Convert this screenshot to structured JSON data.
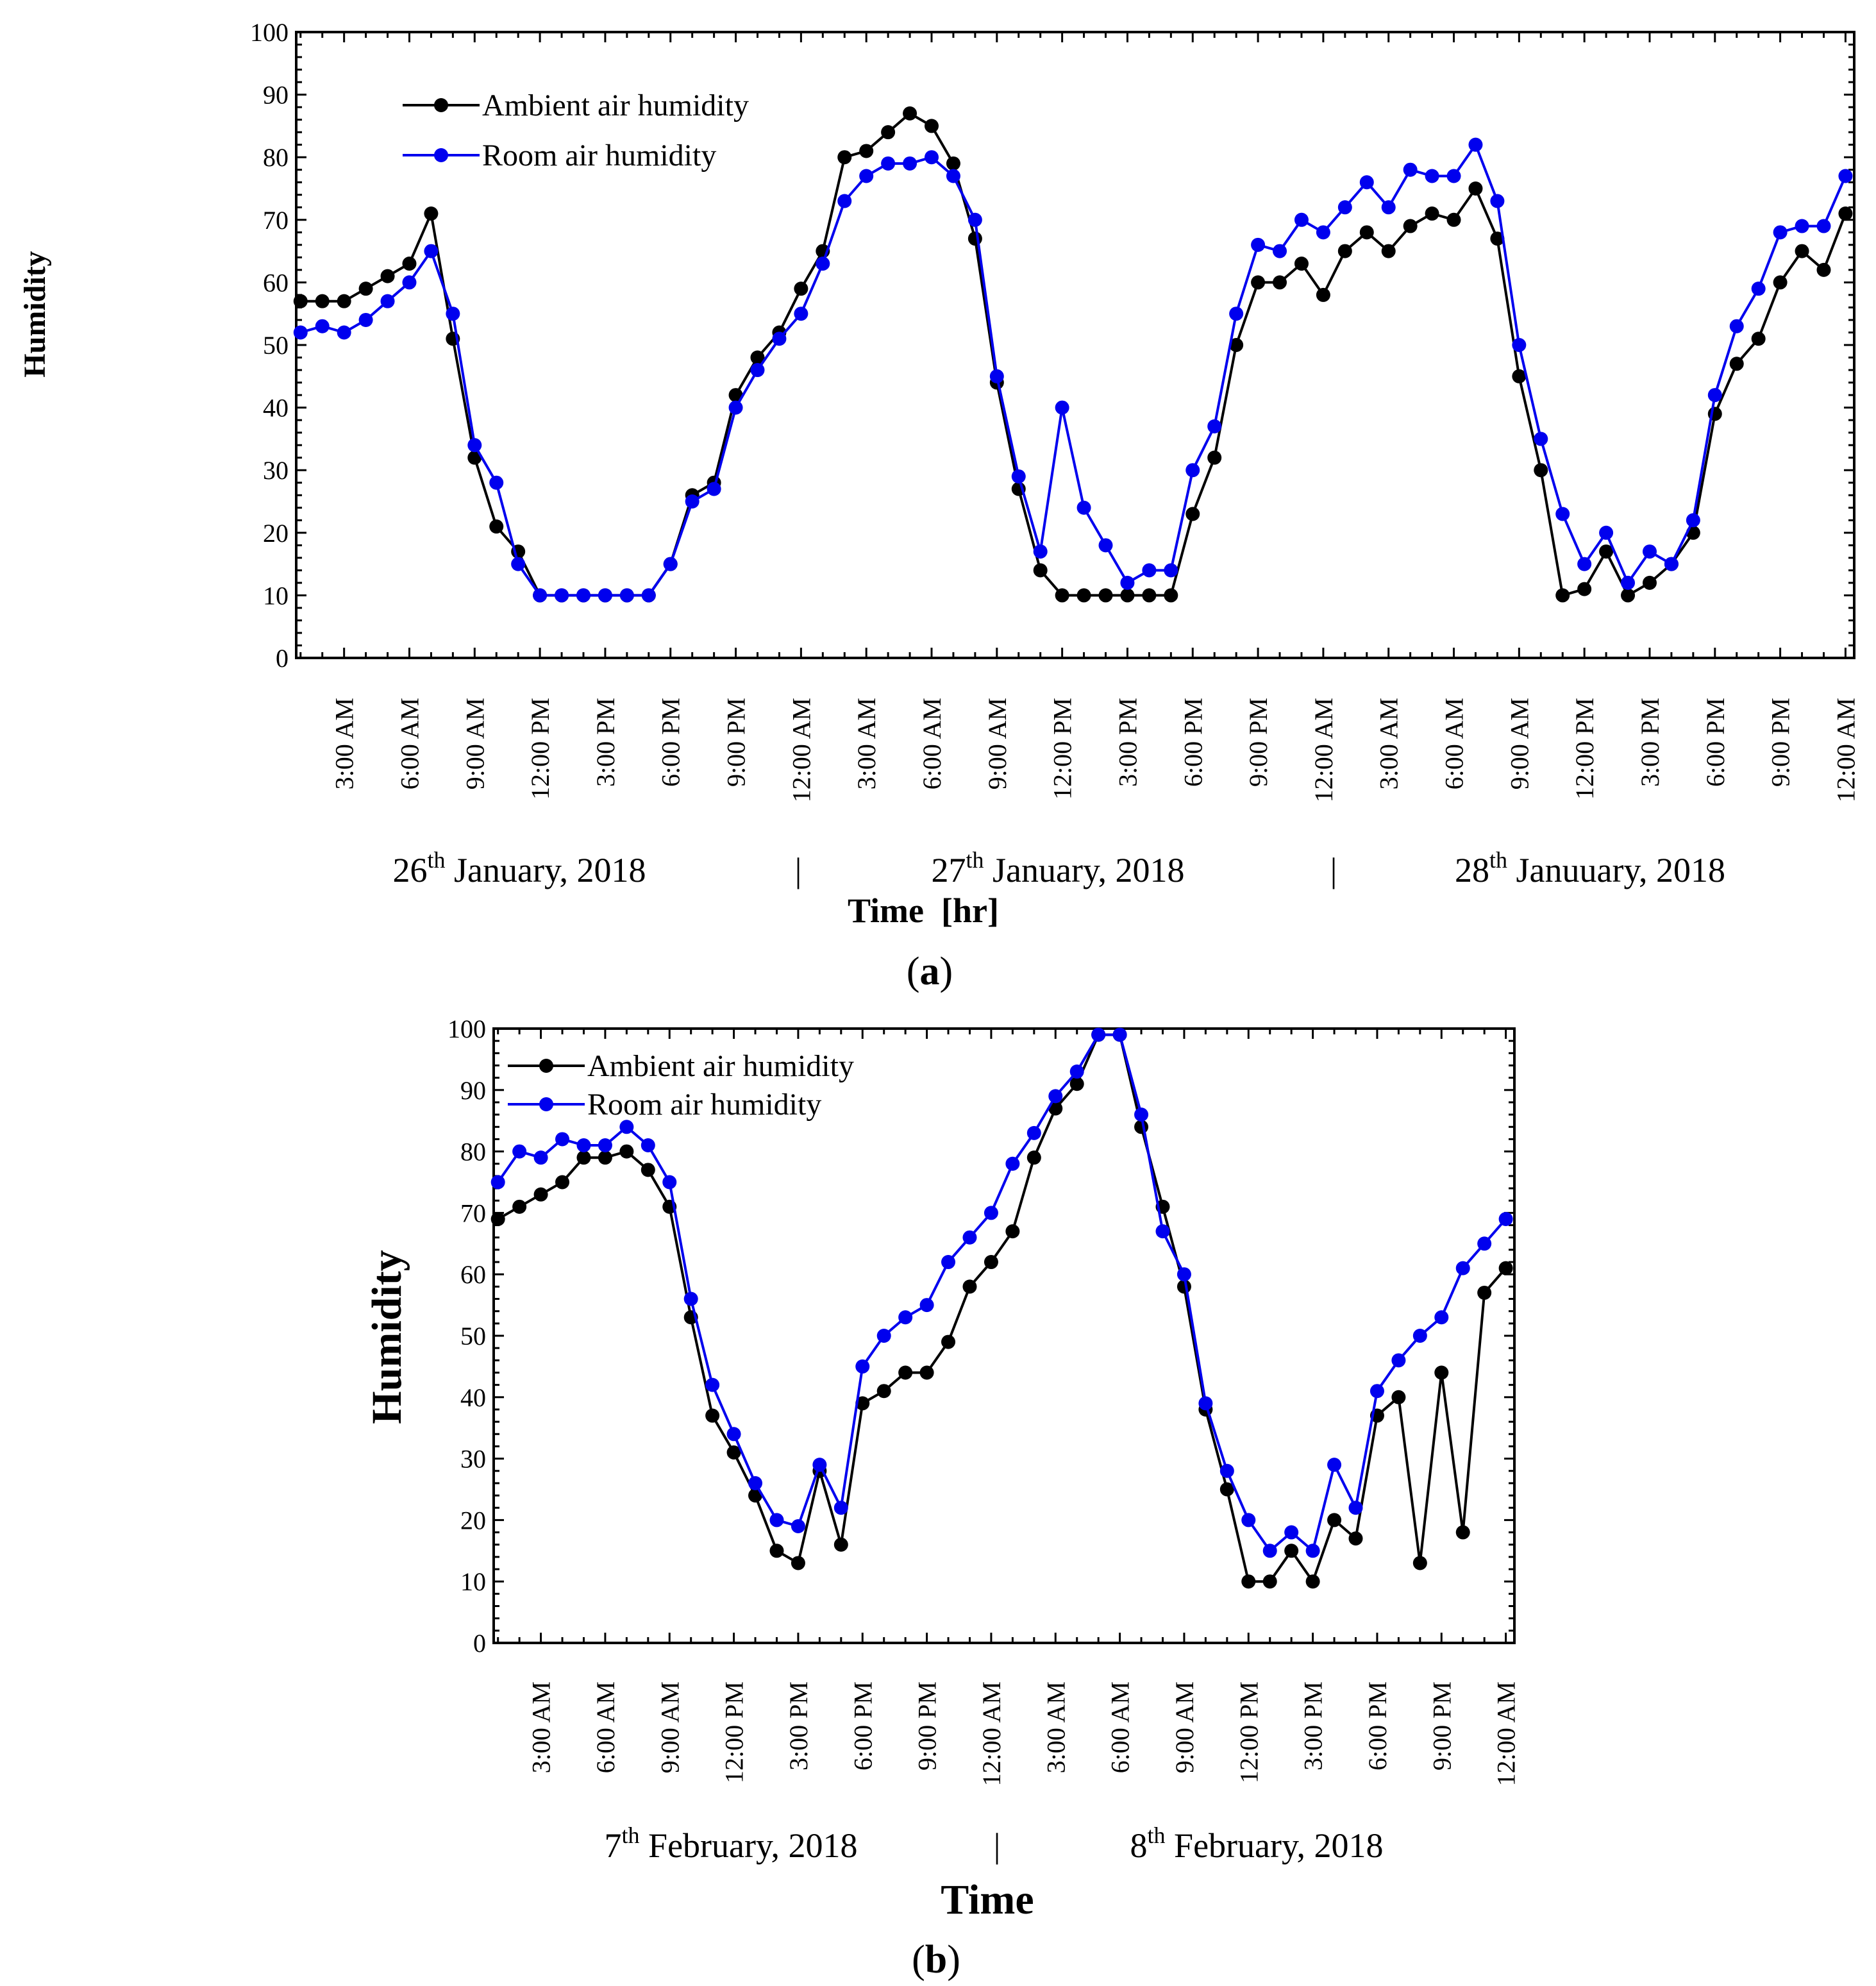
{
  "colors": {
    "ambient": "#000000",
    "room": "#0000ee"
  },
  "chart_data": [
    {
      "type": "line",
      "panel_label": "a",
      "title": "",
      "xlabel": "Time  [hr]",
      "ylabel": "Humidity",
      "ylim": [
        0,
        100
      ],
      "yticks": [
        "0",
        "10",
        "20",
        "30",
        "40",
        "50",
        "60",
        "70",
        "80",
        "90",
        "100"
      ],
      "x_tick_labels": [
        "3:00 AM",
        "6:00 AM",
        "9:00 AM",
        "12:00 PM",
        "3:00 PM",
        "6:00 PM",
        "9:00 PM",
        "12:00 AM",
        "3:00 AM",
        "6:00 AM",
        "9:00 AM",
        "12:00 PM",
        "3:00 PM",
        "6:00 PM",
        "9:00 PM",
        "12:00 AM",
        "3:00 AM",
        "6:00 AM",
        "9:00 AM",
        "12:00 PM",
        "3:00 PM",
        "6:00 PM",
        "9:00 PM",
        "12:00 AM"
      ],
      "date_labels": [
        {
          "day": "26",
          "sup": "th",
          "text": " January, 2018"
        },
        {
          "day": "27",
          "sup": "th",
          "text": " January, 2018"
        },
        {
          "day": "28",
          "sup": "th",
          "text": " Januuary, 2018"
        }
      ],
      "date_separator": "|",
      "series": [
        {
          "name": "Ambient air humidity",
          "values": [
            57,
            57,
            57,
            59,
            61,
            63,
            71,
            51,
            32,
            21,
            17,
            10,
            10,
            10,
            10,
            10,
            10,
            15,
            26,
            28,
            42,
            48,
            52,
            59,
            65,
            80,
            81,
            84,
            87,
            85,
            79,
            67,
            44,
            27,
            14,
            10,
            10,
            10,
            10,
            10,
            10,
            23,
            32,
            50,
            60,
            60,
            63,
            58,
            65,
            68,
            65,
            69,
            71,
            70,
            75,
            67,
            45,
            30,
            10,
            11,
            17,
            10,
            12,
            15,
            20,
            39,
            47,
            51,
            60,
            65,
            62,
            71
          ]
        },
        {
          "name": "Room air humidity",
          "values": [
            52,
            53,
            52,
            54,
            57,
            60,
            65,
            55,
            34,
            28,
            15,
            10,
            10,
            10,
            10,
            10,
            10,
            15,
            25,
            27,
            40,
            46,
            51,
            55,
            63,
            73,
            77,
            79,
            79,
            80,
            77,
            70,
            45,
            29,
            17,
            40,
            24,
            18,
            12,
            14,
            14,
            30,
            37,
            55,
            66,
            65,
            70,
            68,
            72,
            76,
            72,
            78,
            77,
            77,
            82,
            73,
            50,
            35,
            23,
            15,
            20,
            12,
            17,
            15,
            22,
            42,
            53,
            59,
            68,
            69,
            69,
            77
          ]
        }
      ]
    },
    {
      "type": "line",
      "panel_label": "b",
      "title": "",
      "xlabel": "Time",
      "ylabel": "Humidity",
      "ylim": [
        0,
        100
      ],
      "yticks": [
        "0",
        "10",
        "20",
        "30",
        "40",
        "50",
        "60",
        "70",
        "80",
        "90",
        "100"
      ],
      "x_tick_labels": [
        "3:00 AM",
        "6:00 AM",
        "9:00 AM",
        "12:00 PM",
        "3:00 PM",
        "6:00 PM",
        "9:00 PM",
        "12:00 AM",
        "3:00 AM",
        "6:00 AM",
        "9:00 AM",
        "12:00 PM",
        "3:00 PM",
        "6:00 PM",
        "9:00 PM",
        "12:00 AM"
      ],
      "date_labels": [
        {
          "day": "7",
          "sup": "th",
          "text": " February, 2018"
        },
        {
          "day": "8",
          "sup": "th",
          "text": " February, 2018"
        }
      ],
      "date_separator": "|",
      "series": [
        {
          "name": "Ambient air humidity",
          "values": [
            69,
            71,
            73,
            75,
            79,
            79,
            80,
            77,
            71,
            53,
            37,
            31,
            24,
            15,
            13,
            28,
            16,
            39,
            41,
            44,
            44,
            49,
            58,
            62,
            67,
            79,
            87,
            91,
            99,
            99,
            84,
            71,
            58,
            38,
            25,
            10,
            10,
            15,
            10,
            20,
            17,
            37,
            40,
            13,
            44,
            18,
            57,
            61
          ]
        },
        {
          "name": "Room air humidity",
          "values": [
            75,
            80,
            79,
            82,
            81,
            81,
            84,
            81,
            75,
            56,
            42,
            34,
            26,
            20,
            19,
            29,
            22,
            45,
            50,
            53,
            55,
            62,
            66,
            70,
            78,
            83,
            89,
            93,
            99,
            99,
            86,
            67,
            60,
            39,
            28,
            20,
            15,
            18,
            15,
            29,
            22,
            41,
            46,
            50,
            53,
            61,
            65,
            69
          ]
        }
      ]
    }
  ]
}
